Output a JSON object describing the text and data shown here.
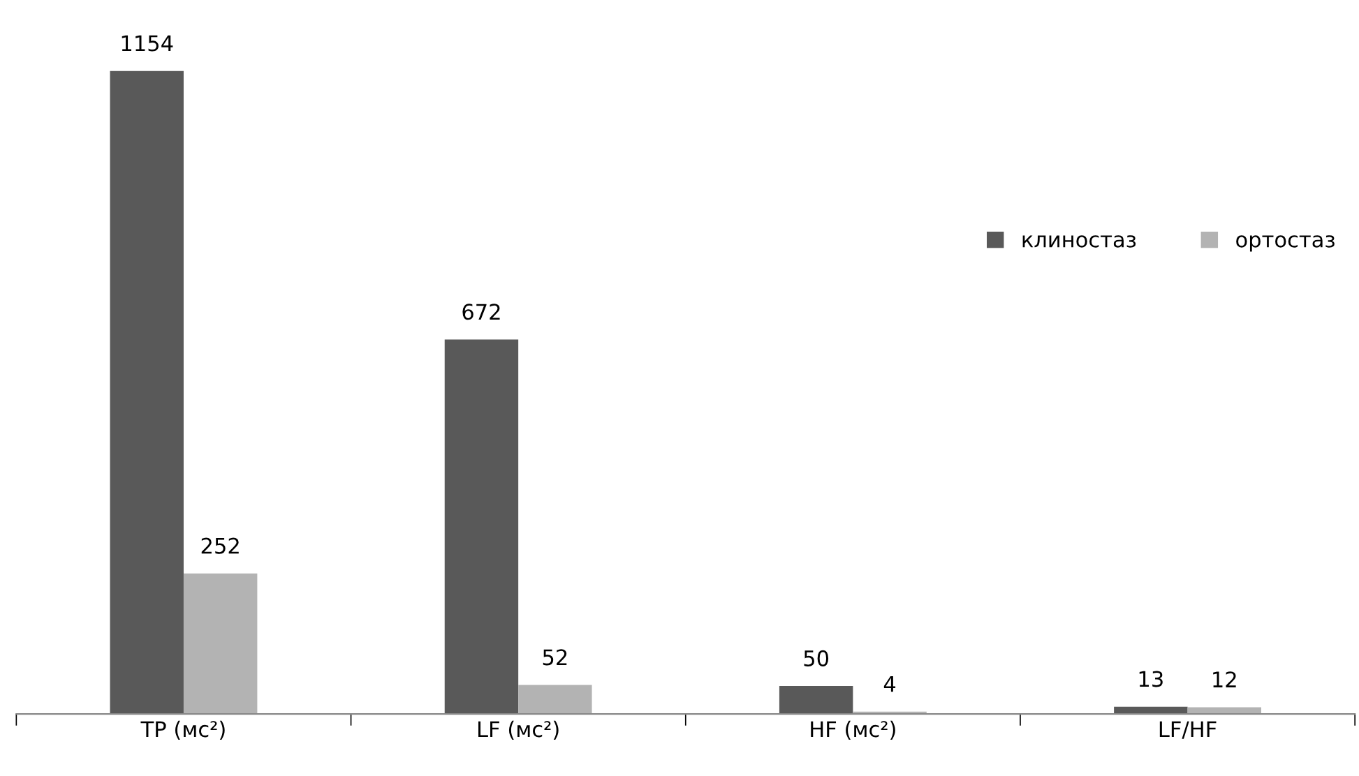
{
  "chart_data": {
    "type": "bar",
    "categories": [
      "TP (мс²)",
      "LF (мс²)",
      "HF (мс²)",
      "LF/HF"
    ],
    "series": [
      {
        "name": "клиностаз",
        "color": "#595959",
        "values": [
          1154,
          672,
          50,
          13
        ]
      },
      {
        "name": "ортостаз",
        "color": "#b3b3b3",
        "values": [
          252,
          52,
          4,
          12
        ]
      }
    ],
    "data_labels": true,
    "legend": "right"
  }
}
